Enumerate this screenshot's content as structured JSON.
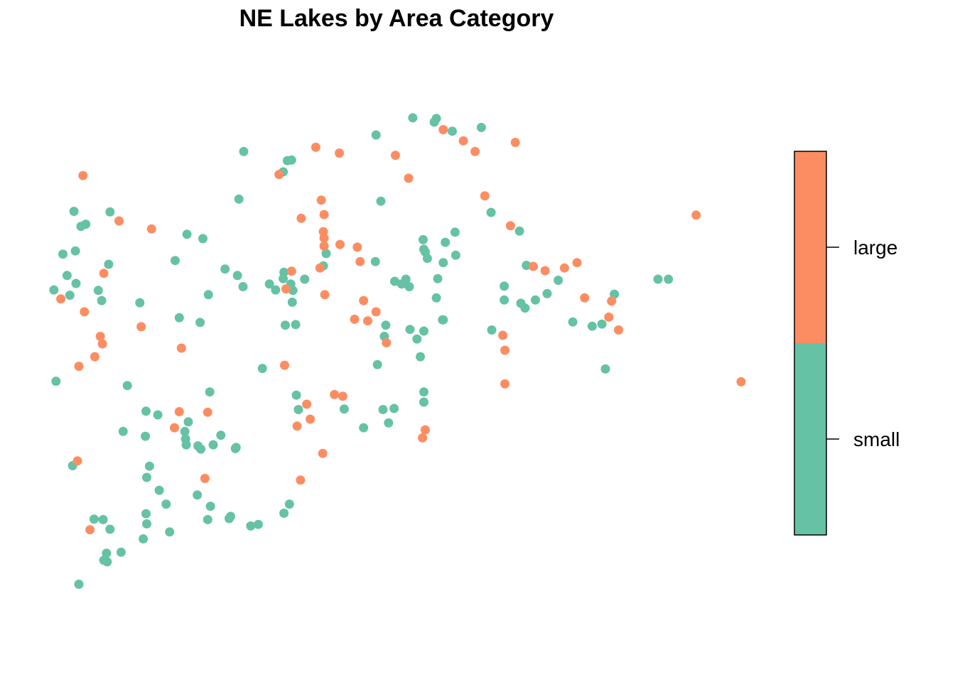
{
  "chart_data": {
    "type": "scatter",
    "title": "NE Lakes by Area Category",
    "xlabel": "",
    "ylabel": "",
    "axes_shown": false,
    "grid": false,
    "xlim": [
      0,
      1
    ],
    "ylim": [
      0,
      1
    ],
    "legend": {
      "placement": "right",
      "style": "color-bar",
      "entries": [
        {
          "label": "large",
          "color": "#FC8D62"
        },
        {
          "label": "small",
          "color": "#66C2A5"
        }
      ]
    },
    "series": [
      {
        "category": "small",
        "color": "#66C2A5",
        "points": [
          [
            0.006,
            0.597
          ],
          [
            0.019,
            0.664
          ],
          [
            0.029,
            0.587
          ],
          [
            0.025,
            0.624
          ],
          [
            0.037,
            0.67
          ],
          [
            0.038,
            0.609
          ],
          [
            0.035,
            0.744
          ],
          [
            0.045,
            0.716
          ],
          [
            0.052,
            0.72
          ],
          [
            0.07,
            0.596
          ],
          [
            0.075,
            0.577
          ],
          [
            0.085,
            0.645
          ],
          [
            0.087,
            0.743
          ],
          [
            0.009,
            0.426
          ],
          [
            0.112,
            0.418
          ],
          [
            0.13,
            0.573
          ],
          [
            0.181,
            0.652
          ],
          [
            0.187,
            0.545
          ],
          [
            0.198,
            0.701
          ],
          [
            0.221,
            0.693
          ],
          [
            0.229,
            0.588
          ],
          [
            0.253,
            0.636
          ],
          [
            0.271,
            0.624
          ],
          [
            0.279,
            0.603
          ],
          [
            0.217,
            0.536
          ],
          [
            0.231,
            0.406
          ],
          [
            0.139,
            0.37
          ],
          [
            0.156,
            0.363
          ],
          [
            0.106,
            0.332
          ],
          [
            0.138,
            0.323
          ],
          [
            0.196,
            0.318
          ],
          [
            0.2,
            0.35
          ],
          [
            0.195,
            0.332
          ],
          [
            0.197,
            0.307
          ],
          [
            0.214,
            0.305
          ],
          [
            0.218,
            0.299
          ],
          [
            0.236,
            0.307
          ],
          [
            0.247,
            0.325
          ],
          [
            0.268,
            0.3
          ],
          [
            0.269,
            0.302
          ],
          [
            0.144,
            0.267
          ],
          [
            0.14,
            0.246
          ],
          [
            0.158,
            0.222
          ],
          [
            0.139,
            0.178
          ],
          [
            0.168,
            0.196
          ],
          [
            0.213,
            0.213
          ],
          [
            0.232,
            0.192
          ],
          [
            0.228,
            0.167
          ],
          [
            0.259,
            0.169
          ],
          [
            0.261,
            0.173
          ],
          [
            0.29,
            0.155
          ],
          [
            0.033,
            0.268
          ],
          [
            0.064,
            0.168
          ],
          [
            0.077,
            0.167
          ],
          [
            0.087,
            0.149
          ],
          [
            0.14,
            0.159
          ],
          [
            0.135,
            0.131
          ],
          [
            0.173,
            0.144
          ],
          [
            0.082,
            0.104
          ],
          [
            0.078,
            0.091
          ],
          [
            0.103,
            0.106
          ],
          [
            0.083,
            0.088
          ],
          [
            0.042,
            0.046
          ],
          [
            0.273,
            0.767
          ],
          [
            0.28,
            0.856
          ],
          [
            0.343,
            0.839
          ],
          [
            0.349,
            0.84
          ],
          [
            0.337,
            0.818
          ],
          [
            0.338,
            0.63
          ],
          [
            0.317,
            0.608
          ],
          [
            0.326,
            0.597
          ],
          [
            0.337,
            0.618
          ],
          [
            0.351,
            0.596
          ],
          [
            0.35,
            0.574
          ],
          [
            0.348,
            0.608
          ],
          [
            0.368,
            0.617
          ],
          [
            0.395,
            0.642
          ],
          [
            0.399,
            0.665
          ],
          [
            0.34,
            0.531
          ],
          [
            0.355,
            0.532
          ],
          [
            0.307,
            0.45
          ],
          [
            0.356,
            0.4
          ],
          [
            0.359,
            0.373
          ],
          [
            0.338,
            0.179
          ],
          [
            0.346,
            0.196
          ],
          [
            0.301,
            0.158
          ],
          [
            0.425,
            0.374
          ],
          [
            0.471,
            0.887
          ],
          [
            0.478,
            0.763
          ],
          [
            0.47,
            0.65
          ],
          [
            0.483,
            0.51
          ],
          [
            0.485,
            0.531
          ],
          [
            0.473,
            0.457
          ],
          [
            0.481,
            0.373
          ],
          [
            0.497,
            0.375
          ],
          [
            0.489,
            0.348
          ],
          [
            0.453,
            0.339
          ],
          [
            0.524,
            0.919
          ],
          [
            0.555,
            0.911
          ],
          [
            0.558,
            0.918
          ],
          [
            0.581,
            0.894
          ],
          [
            0.623,
            0.901
          ],
          [
            0.539,
            0.691
          ],
          [
            0.54,
            0.673
          ],
          [
            0.542,
            0.668
          ],
          [
            0.545,
            0.656
          ],
          [
            0.571,
            0.686
          ],
          [
            0.585,
            0.705
          ],
          [
            0.568,
            0.648
          ],
          [
            0.586,
            0.662
          ],
          [
            0.56,
            0.618
          ],
          [
            0.514,
            0.617
          ],
          [
            0.519,
            0.603
          ],
          [
            0.508,
            0.608
          ],
          [
            0.498,
            0.613
          ],
          [
            0.558,
            0.582
          ],
          [
            0.568,
            0.541
          ],
          [
            0.52,
            0.523
          ],
          [
            0.54,
            0.52
          ],
          [
            0.567,
            0.541
          ],
          [
            0.53,
            0.505
          ],
          [
            0.535,
            0.472
          ],
          [
            0.656,
            0.604
          ],
          [
            0.688,
            0.643
          ],
          [
            0.734,
            0.615
          ],
          [
            0.68,
            0.572
          ],
          [
            0.701,
            0.578
          ],
          [
            0.686,
            0.563
          ],
          [
            0.718,
            0.59
          ],
          [
            0.638,
            0.522
          ],
          [
            0.656,
            0.578
          ],
          [
            0.637,
            0.742
          ],
          [
            0.678,
            0.707
          ],
          [
            0.755,
            0.537
          ],
          [
            0.783,
            0.529
          ],
          [
            0.797,
            0.533
          ],
          [
            0.815,
            0.589
          ],
          [
            0.802,
            0.449
          ],
          [
            0.878,
            0.617
          ],
          [
            0.893,
            0.617
          ],
          [
            0.54,
            0.406
          ],
          [
            0.54,
            0.387
          ]
        ]
      },
      {
        "category": "large",
        "color": "#FC8D62",
        "points": [
          [
            0.048,
            0.811
          ],
          [
            0.1,
            0.726
          ],
          [
            0.147,
            0.711
          ],
          [
            0.078,
            0.628
          ],
          [
            0.016,
            0.58
          ],
          [
            0.05,
            0.556
          ],
          [
            0.073,
            0.51
          ],
          [
            0.132,
            0.528
          ],
          [
            0.076,
            0.496
          ],
          [
            0.19,
            0.488
          ],
          [
            0.065,
            0.472
          ],
          [
            0.042,
            0.454
          ],
          [
            0.04,
            0.277
          ],
          [
            0.058,
            0.148
          ],
          [
            0.187,
            0.369
          ],
          [
            0.228,
            0.368
          ],
          [
            0.18,
            0.339
          ],
          [
            0.224,
            0.244
          ],
          [
            0.331,
            0.813
          ],
          [
            0.384,
            0.864
          ],
          [
            0.418,
            0.853
          ],
          [
            0.392,
            0.765
          ],
          [
            0.396,
            0.738
          ],
          [
            0.363,
            0.731
          ],
          [
            0.395,
            0.706
          ],
          [
            0.396,
            0.694
          ],
          [
            0.396,
            0.679
          ],
          [
            0.419,
            0.682
          ],
          [
            0.444,
            0.677
          ],
          [
            0.448,
            0.65
          ],
          [
            0.39,
            0.638
          ],
          [
            0.349,
            0.632
          ],
          [
            0.397,
            0.588
          ],
          [
            0.341,
            0.599
          ],
          [
            0.453,
            0.577
          ],
          [
            0.44,
            0.542
          ],
          [
            0.459,
            0.539
          ],
          [
            0.471,
            0.556
          ],
          [
            0.486,
            0.498
          ],
          [
            0.339,
            0.456
          ],
          [
            0.423,
            0.398
          ],
          [
            0.371,
            0.383
          ],
          [
            0.394,
            0.291
          ],
          [
            0.362,
            0.241
          ],
          [
            0.518,
            0.806
          ],
          [
            0.499,
            0.849
          ],
          [
            0.568,
            0.897
          ],
          [
            0.597,
            0.876
          ],
          [
            0.614,
            0.856
          ],
          [
            0.672,
            0.873
          ],
          [
            0.628,
            0.773
          ],
          [
            0.665,
            0.717
          ],
          [
            0.743,
            0.638
          ],
          [
            0.698,
            0.641
          ],
          [
            0.761,
            0.648
          ],
          [
            0.715,
            0.633
          ],
          [
            0.772,
            0.582
          ],
          [
            0.811,
            0.576
          ],
          [
            0.807,
            0.546
          ],
          [
            0.654,
            0.512
          ],
          [
            0.657,
            0.484
          ],
          [
            0.657,
            0.421
          ],
          [
            0.821,
            0.522
          ],
          [
            0.933,
            0.737
          ],
          [
            0.998,
            0.425
          ],
          [
            0.542,
            0.335
          ],
          [
            0.538,
            0.32
          ],
          [
            0.411,
            0.401
          ],
          [
            0.376,
            0.355
          ],
          [
            0.357,
            0.342
          ]
        ]
      }
    ]
  }
}
